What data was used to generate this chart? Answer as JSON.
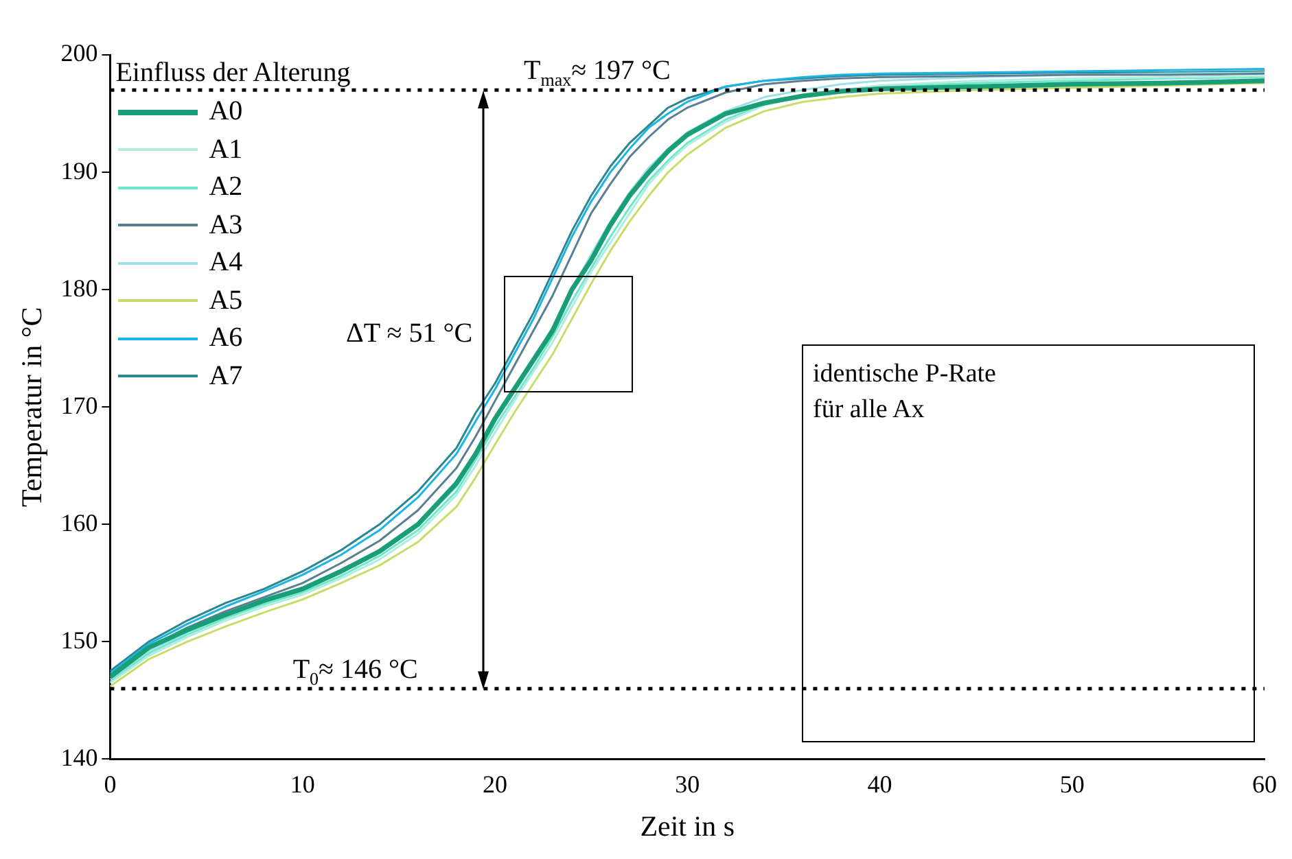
{
  "chart_data": {
    "type": "line",
    "xlabel": "Zeit in s",
    "ylabel": "Temperatur in °C",
    "legend_title": "Einfluss der Alterung",
    "legend": "top left",
    "grid": false,
    "marker": "none",
    "line_style": "solid",
    "x": [
      0,
      2,
      4,
      6,
      8,
      10,
      12,
      14,
      16,
      18,
      19,
      20,
      21,
      22,
      23,
      24,
      25,
      26,
      27,
      28,
      29,
      30,
      32,
      34,
      36,
      38,
      40,
      45,
      50,
      55,
      60
    ],
    "xlim": [
      0,
      60
    ],
    "xticks": [
      0,
      10,
      20,
      30,
      40,
      50,
      60
    ],
    "ylim": [
      140,
      200
    ],
    "yticks": [
      140,
      150,
      160,
      170,
      180,
      190,
      200
    ],
    "series": [
      {
        "name": "A0",
        "color": "#1a9e77",
        "values": [
          147,
          149.5,
          151,
          152.3,
          153.5,
          154.5,
          156,
          157.7,
          160,
          163.5,
          166,
          169,
          171.5,
          174,
          176.5,
          180,
          182.5,
          185.5,
          188,
          190,
          191.8,
          193.2,
          195,
          195.9,
          196.5,
          196.9,
          197.1,
          197.3,
          197.5,
          197.6,
          197.8
        ]
      },
      {
        "name": "A1",
        "color": "#b2ebe0",
        "values": [
          146.5,
          148.8,
          150.4,
          151.8,
          153,
          154,
          155.4,
          157,
          159.2,
          162.5,
          165,
          167.8,
          170.5,
          173,
          175.5,
          178.5,
          181.5,
          184,
          186.5,
          189,
          190.8,
          192.3,
          194.3,
          195.7,
          196.5,
          197,
          197.4,
          197.8,
          198,
          198.1,
          198.2
        ]
      },
      {
        "name": "A2",
        "color": "#6ee8cc",
        "values": [
          146.6,
          149,
          150.6,
          152,
          153.2,
          154.2,
          155.6,
          157.3,
          159.5,
          162.8,
          165.5,
          168.3,
          170.8,
          173.3,
          176,
          179,
          181.8,
          184.5,
          187,
          189.3,
          191,
          192.5,
          194.5,
          195.8,
          196.5,
          197,
          197.3,
          197.6,
          197.8,
          198,
          198.1
        ]
      },
      {
        "name": "A3",
        "color": "#5a7f94",
        "values": [
          147,
          149.5,
          151.2,
          152.6,
          153.8,
          155,
          156.7,
          158.6,
          161.2,
          164.8,
          167.5,
          170.5,
          173.5,
          176.5,
          179.5,
          183,
          186.5,
          189,
          191.3,
          193,
          194.5,
          195.5,
          196.8,
          197.5,
          197.8,
          198,
          198.1,
          198.2,
          198.3,
          198.3,
          198.4
        ]
      },
      {
        "name": "A4",
        "color": "#9fe0e6",
        "values": [
          146.8,
          149.2,
          150.8,
          152.2,
          153.4,
          154.5,
          155.9,
          157.6,
          160,
          163.2,
          166,
          168.8,
          171.3,
          174,
          176.8,
          180,
          183,
          185.8,
          188.3,
          190.4,
          192,
          193.4,
          195.2,
          196.4,
          197,
          197.5,
          197.8,
          198.1,
          198.3,
          198.4,
          198.5
        ]
      },
      {
        "name": "A5",
        "color": "#c8dc6a",
        "values": [
          146.2,
          148.5,
          150,
          151.3,
          152.5,
          153.6,
          155,
          156.5,
          158.5,
          161.5,
          164,
          166.8,
          169.5,
          172,
          174.5,
          177.5,
          180.5,
          183.3,
          185.8,
          188,
          190,
          191.5,
          193.8,
          195.2,
          196,
          196.4,
          196.7,
          197,
          197.2,
          197.4,
          197.6
        ]
      },
      {
        "name": "A6",
        "color": "#1ab4e6",
        "values": [
          147.3,
          149.8,
          151.5,
          153,
          154.3,
          155.7,
          157.4,
          159.5,
          162.3,
          166,
          168.8,
          171.5,
          174.5,
          177.5,
          181,
          184.5,
          187.5,
          190,
          192,
          193.8,
          195,
          196,
          197.3,
          197.8,
          198.1,
          198.3,
          198.4,
          198.5,
          198.6,
          198.7,
          198.8
        ]
      },
      {
        "name": "A7",
        "color": "#2a8790",
        "values": [
          147.5,
          150,
          151.8,
          153.3,
          154.5,
          156,
          157.8,
          160,
          162.8,
          166.5,
          169.5,
          172,
          175,
          178,
          181.5,
          185,
          188,
          190.5,
          192.5,
          194,
          195.5,
          196.3,
          197.3,
          197.8,
          198,
          198.2,
          198.3,
          198.4,
          198.5,
          198.5,
          198.6
        ]
      }
    ],
    "ref_lines": [
      {
        "axis": "y",
        "value": 197,
        "label": "T$_{max}$≈ 197 °C",
        "color": "#000000",
        "line_style": "dotted"
      },
      {
        "axis": "y",
        "value": 146,
        "label": "T$_{0}$≈ 146 °C",
        "color": "#000000",
        "line_style": "dotted"
      }
    ],
    "annotations": [
      {
        "text": "ΔT ≈ 51 °C",
        "x": 19.4,
        "y": 171.5
      },
      "identische P-Rate für alle Ax"
    ]
  }
}
